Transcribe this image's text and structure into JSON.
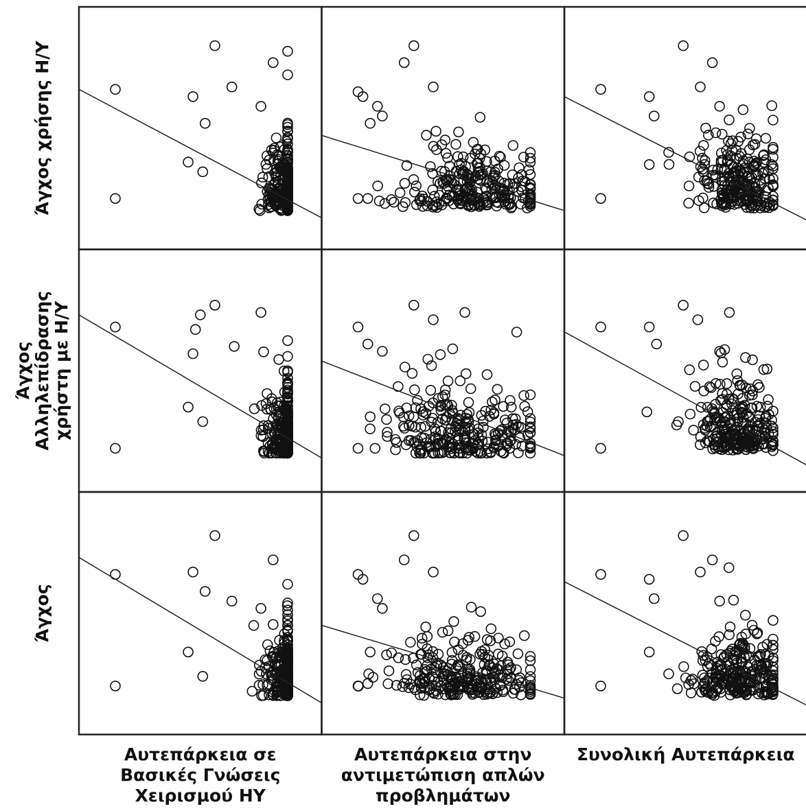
{
  "chart_data": {
    "type": "scatter",
    "layout": "scatterplot-matrix",
    "title": "",
    "rows": [
      {
        "label": "Άγχος χρήσης Η/Υ",
        "label_lines": [
          "Άγχος χρήσης Η/Υ"
        ]
      },
      {
        "label": "Άγχος Αλληλεπίδρασης χρήστη με Η/Υ",
        "label_lines": [
          "Άγχος",
          "Αλληλεπίδρασης",
          "χρήστη με Η/Υ"
        ]
      },
      {
        "label": "Άγχος",
        "label_lines": [
          "Άγχος"
        ]
      }
    ],
    "columns": [
      {
        "label": "Αυτεπάρκεια σε Βασικές Γνώσεις Χειρισμού ΗΥ",
        "label_lines": [
          "Αυτεπάρκεια σε",
          "Βασικές Γνώσεις",
          "Χειρισμού ΗΥ"
        ]
      },
      {
        "label": "Αυτεπάρκεια στην αντιμετώπιση απλών προβλημάτων",
        "label_lines": [
          "Αυτεπάρκεια στην",
          "αντιμετώπιση απλών",
          "προβλημάτων"
        ]
      },
      {
        "label": "Συνολική Αυτεπάρκεια",
        "label_lines": [
          "Συνολική Αυτεπάρκεια"
        ]
      }
    ],
    "fit_lines": [
      [
        {
          "row": 0,
          "col": 0,
          "y_at_xmin": 0.66,
          "y_at_xmax": 0.13
        },
        {
          "row": 0,
          "col": 1,
          "y_at_xmin": 0.47,
          "y_at_xmax": 0.16
        },
        {
          "row": 0,
          "col": 2,
          "y_at_xmin": 0.63,
          "y_at_xmax": 0.12
        }
      ],
      [
        {
          "row": 1,
          "col": 0,
          "y_at_xmin": 0.73,
          "y_at_xmax": 0.14
        },
        {
          "row": 1,
          "col": 1,
          "y_at_xmin": 0.54,
          "y_at_xmax": 0.15
        },
        {
          "row": 1,
          "col": 2,
          "y_at_xmin": 0.66,
          "y_at_xmax": 0.11
        }
      ],
      [
        {
          "row": 2,
          "col": 0,
          "y_at_xmin": 0.73,
          "y_at_xmax": 0.13
        },
        {
          "row": 2,
          "col": 1,
          "y_at_xmin": 0.45,
          "y_at_xmax": 0.15
        },
        {
          "row": 2,
          "col": 2,
          "y_at_xmin": 0.63,
          "y_at_xmax": 0.12
        }
      ]
    ],
    "clusters": [
      [
        {
          "cx": 0.87,
          "cy": 0.2,
          "sx": 0.055,
          "sy": 0.13,
          "n": 300
        },
        {
          "cx": 0.62,
          "cy": 0.22,
          "sx": 0.16,
          "sy": 0.1,
          "n": 260
        },
        {
          "cx": 0.73,
          "cy": 0.22,
          "sx": 0.09,
          "sy": 0.12,
          "n": 260
        }
      ],
      [
        {
          "cx": 0.87,
          "cy": 0.2,
          "sx": 0.055,
          "sy": 0.12,
          "n": 300
        },
        {
          "cx": 0.58,
          "cy": 0.2,
          "sx": 0.16,
          "sy": 0.11,
          "n": 260
        },
        {
          "cx": 0.72,
          "cy": 0.22,
          "sx": 0.09,
          "sy": 0.12,
          "n": 260
        }
      ],
      [
        {
          "cx": 0.87,
          "cy": 0.2,
          "sx": 0.055,
          "sy": 0.12,
          "n": 300
        },
        {
          "cx": 0.6,
          "cy": 0.21,
          "sx": 0.16,
          "sy": 0.1,
          "n": 260
        },
        {
          "cx": 0.73,
          "cy": 0.21,
          "sx": 0.09,
          "sy": 0.11,
          "n": 260
        }
      ]
    ],
    "outliers": [
      [
        [
          [
            0.15,
            0.66
          ],
          [
            0.15,
            0.21
          ],
          [
            0.56,
            0.84
          ],
          [
            0.8,
            0.77
          ],
          [
            0.47,
            0.63
          ],
          [
            0.52,
            0.52
          ],
          [
            0.45,
            0.36
          ],
          [
            0.51,
            0.32
          ],
          [
            0.63,
            0.67
          ],
          [
            0.75,
            0.59
          ]
        ],
        [
          [
            0.38,
            0.84
          ],
          [
            0.34,
            0.77
          ],
          [
            0.46,
            0.67
          ],
          [
            0.15,
            0.65
          ],
          [
            0.17,
            0.63
          ],
          [
            0.23,
            0.59
          ],
          [
            0.25,
            0.55
          ],
          [
            0.2,
            0.52
          ],
          [
            0.15,
            0.21
          ],
          [
            0.19,
            0.21
          ]
        ],
        [
          [
            0.49,
            0.84
          ],
          [
            0.61,
            0.77
          ],
          [
            0.15,
            0.66
          ],
          [
            0.35,
            0.63
          ],
          [
            0.56,
            0.67
          ],
          [
            0.37,
            0.55
          ],
          [
            0.35,
            0.35
          ],
          [
            0.15,
            0.21
          ],
          [
            0.43,
            0.4
          ],
          [
            0.64,
            0.59
          ]
        ]
      ],
      [
        [
          [
            0.15,
            0.68
          ],
          [
            0.15,
            0.18
          ],
          [
            0.56,
            0.77
          ],
          [
            0.75,
            0.74
          ],
          [
            0.5,
            0.73
          ],
          [
            0.48,
            0.67
          ],
          [
            0.47,
            0.57
          ],
          [
            0.45,
            0.35
          ],
          [
            0.51,
            0.29
          ],
          [
            0.64,
            0.6
          ]
        ],
        [
          [
            0.38,
            0.77
          ],
          [
            0.59,
            0.74
          ],
          [
            0.15,
            0.68
          ],
          [
            0.19,
            0.61
          ],
          [
            0.46,
            0.71
          ],
          [
            0.25,
            0.58
          ],
          [
            0.2,
            0.31
          ],
          [
            0.15,
            0.18
          ],
          [
            0.22,
            0.18
          ],
          [
            0.54,
            0.59
          ]
        ],
        [
          [
            0.49,
            0.77
          ],
          [
            0.68,
            0.74
          ],
          [
            0.15,
            0.68
          ],
          [
            0.35,
            0.68
          ],
          [
            0.55,
            0.71
          ],
          [
            0.38,
            0.61
          ],
          [
            0.34,
            0.33
          ],
          [
            0.15,
            0.18
          ],
          [
            0.47,
            0.29
          ],
          [
            0.64,
            0.58
          ]
        ]
      ],
      [
        [
          [
            0.15,
            0.66
          ],
          [
            0.15,
            0.2
          ],
          [
            0.56,
            0.82
          ],
          [
            0.8,
            0.72
          ],
          [
            0.47,
            0.67
          ],
          [
            0.52,
            0.59
          ],
          [
            0.45,
            0.34
          ],
          [
            0.51,
            0.24
          ],
          [
            0.63,
            0.55
          ],
          [
            0.75,
            0.52
          ]
        ],
        [
          [
            0.38,
            0.82
          ],
          [
            0.34,
            0.72
          ],
          [
            0.46,
            0.67
          ],
          [
            0.15,
            0.66
          ],
          [
            0.17,
            0.64
          ],
          [
            0.23,
            0.56
          ],
          [
            0.25,
            0.52
          ],
          [
            0.2,
            0.34
          ],
          [
            0.15,
            0.2
          ],
          [
            0.19,
            0.21
          ]
        ],
        [
          [
            0.49,
            0.82
          ],
          [
            0.61,
            0.72
          ],
          [
            0.15,
            0.66
          ],
          [
            0.35,
            0.64
          ],
          [
            0.56,
            0.67
          ],
          [
            0.37,
            0.56
          ],
          [
            0.35,
            0.34
          ],
          [
            0.15,
            0.2
          ],
          [
            0.43,
            0.25
          ],
          [
            0.64,
            0.55
          ]
        ]
      ]
    ],
    "grid": false,
    "legend": "none"
  }
}
